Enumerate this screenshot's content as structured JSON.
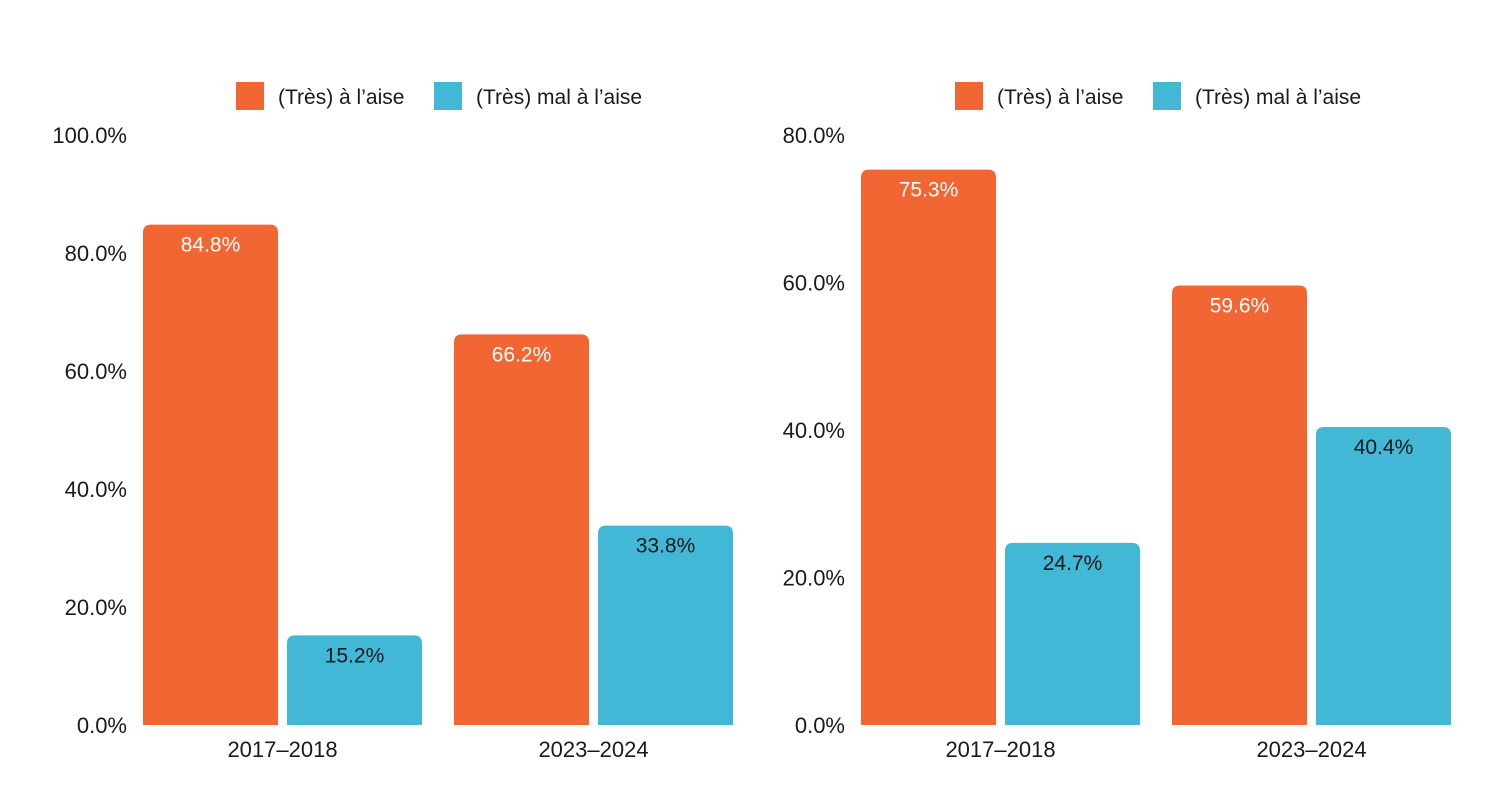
{
  "colors": {
    "comfortable": "#F26633",
    "uncomfortable": "#42B8D6",
    "label_on_orange": "#ffffff",
    "label_on_blue": "#1a1a1a"
  },
  "chart_data": [
    {
      "type": "bar",
      "categories": [
        "2017–2018",
        "2023–2024"
      ],
      "series": [
        {
          "name": "(Très) à l’aise",
          "values": [
            84.8,
            66.2
          ],
          "color": "#F26633"
        },
        {
          "name": "(Très) mal à l’aise",
          "values": [
            15.2,
            33.8
          ],
          "color": "#42B8D6"
        }
      ],
      "data_labels": [
        [
          "84.8%",
          "66.2%"
        ],
        [
          "15.2%",
          "33.8%"
        ]
      ],
      "yticks": [
        "0.0%",
        "20.0%",
        "40.0%",
        "60.0%",
        "80.0%",
        "100.0%"
      ],
      "ylim": [
        0,
        100
      ],
      "legend": "top-center",
      "grid": false
    },
    {
      "type": "bar",
      "categories": [
        "2017–2018",
        "2023–2024"
      ],
      "series": [
        {
          "name": "(Très) à l’aise",
          "values": [
            75.3,
            59.6
          ],
          "color": "#F26633"
        },
        {
          "name": "(Très) mal à l’aise",
          "values": [
            24.7,
            40.4
          ],
          "color": "#42B8D6"
        }
      ],
      "data_labels": [
        [
          "75.3%",
          "59.6%"
        ],
        [
          "24.7%",
          "40.4%"
        ]
      ],
      "yticks": [
        "0.0%",
        "20.0%",
        "40.0%",
        "60.0%",
        "80.0%"
      ],
      "ylim": [
        0,
        80
      ],
      "legend": "top-center",
      "grid": false
    }
  ]
}
